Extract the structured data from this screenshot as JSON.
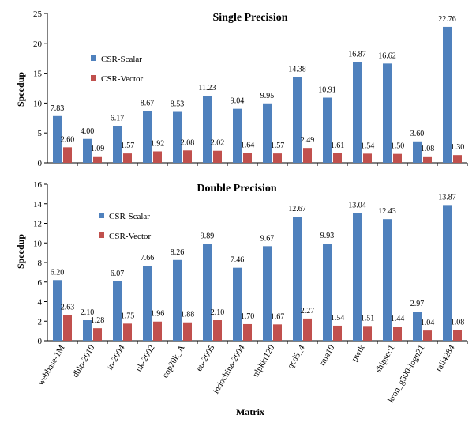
{
  "chart_data": [
    {
      "type": "bar",
      "title": "Single Precision",
      "ylabel": "Speedup",
      "xlabel": "",
      "ylim": [
        0,
        25
      ],
      "yticks": [
        0,
        5,
        10,
        15,
        20,
        25
      ],
      "legend_position": "upper-left",
      "grid": false,
      "categories": [
        "webbase-1M",
        "dblp-2010",
        "in-2004",
        "uk-2002",
        "cop20k_A",
        "eu-2005",
        "indochina-2004",
        "nlpkkt120",
        "qcd5_4",
        "rma10",
        "pwtk",
        "shipsec1",
        "kron_g500-logn21",
        "rail4284"
      ],
      "series": [
        {
          "name": "CSR-Scalar",
          "color": "#4F81BD",
          "values": [
            7.83,
            4.0,
            6.17,
            8.67,
            8.53,
            11.23,
            9.04,
            9.95,
            14.38,
            10.91,
            16.87,
            16.62,
            3.6,
            22.76
          ],
          "labels": [
            "7.83",
            "4.00",
            "6.17",
            "8.67",
            "8.53",
            "11.23",
            "9.04",
            "9.95",
            "14.38",
            "10.91",
            "16.87",
            "16.62",
            "3.60",
            "22.76"
          ]
        },
        {
          "name": "CSR-Vector",
          "color": "#C0504D",
          "values": [
            2.6,
            1.09,
            1.57,
            1.92,
            2.08,
            2.02,
            1.64,
            1.57,
            2.49,
            1.61,
            1.54,
            1.5,
            1.08,
            1.3
          ],
          "labels": [
            "2.60",
            "1.09",
            "1.57",
            "1.92",
            "2.08",
            "2.02",
            "1.64",
            "1.57",
            "2.49",
            "1.61",
            "1.54",
            "1.50",
            "1.08",
            "1.30"
          ]
        }
      ]
    },
    {
      "type": "bar",
      "title": "Double Precision",
      "ylabel": "Speedup",
      "xlabel": "Matrix",
      "ylim": [
        0,
        16
      ],
      "yticks": [
        0,
        2,
        4,
        6,
        8,
        10,
        12,
        14,
        16
      ],
      "legend_position": "upper-left",
      "grid": false,
      "categories": [
        "webbase-1M",
        "dblp-2010",
        "in-2004",
        "uk-2002",
        "cop20k_A",
        "eu-2005",
        "indochina-2004",
        "nlpkkt120",
        "qcd5_4",
        "rma10",
        "pwtk",
        "shipsec1",
        "kron_g500-logn21",
        "rail4284"
      ],
      "series": [
        {
          "name": "CSR-Scalar",
          "color": "#4F81BD",
          "values": [
            6.2,
            2.1,
            6.07,
            7.66,
            8.26,
            9.89,
            7.46,
            9.67,
            12.67,
            9.93,
            13.04,
            12.43,
            2.97,
            13.87
          ],
          "labels": [
            "6.20",
            "2.10",
            "6.07",
            "7.66",
            "8.26",
            "9.89",
            "7.46",
            "9.67",
            "12.67",
            "9.93",
            "13.04",
            "12.43",
            "2.97",
            "13.87"
          ]
        },
        {
          "name": "CSR-Vector",
          "color": "#C0504D",
          "values": [
            2.63,
            1.28,
            1.75,
            1.96,
            1.88,
            2.1,
            1.7,
            1.67,
            2.27,
            1.54,
            1.51,
            1.44,
            1.04,
            1.08
          ],
          "labels": [
            "2.63",
            "1.28",
            "1.75",
            "1.96",
            "1.88",
            "2.10",
            "1.70",
            "1.67",
            "2.27",
            "1.54",
            "1.51",
            "1.44",
            "1.04",
            "1.08"
          ]
        }
      ]
    }
  ]
}
